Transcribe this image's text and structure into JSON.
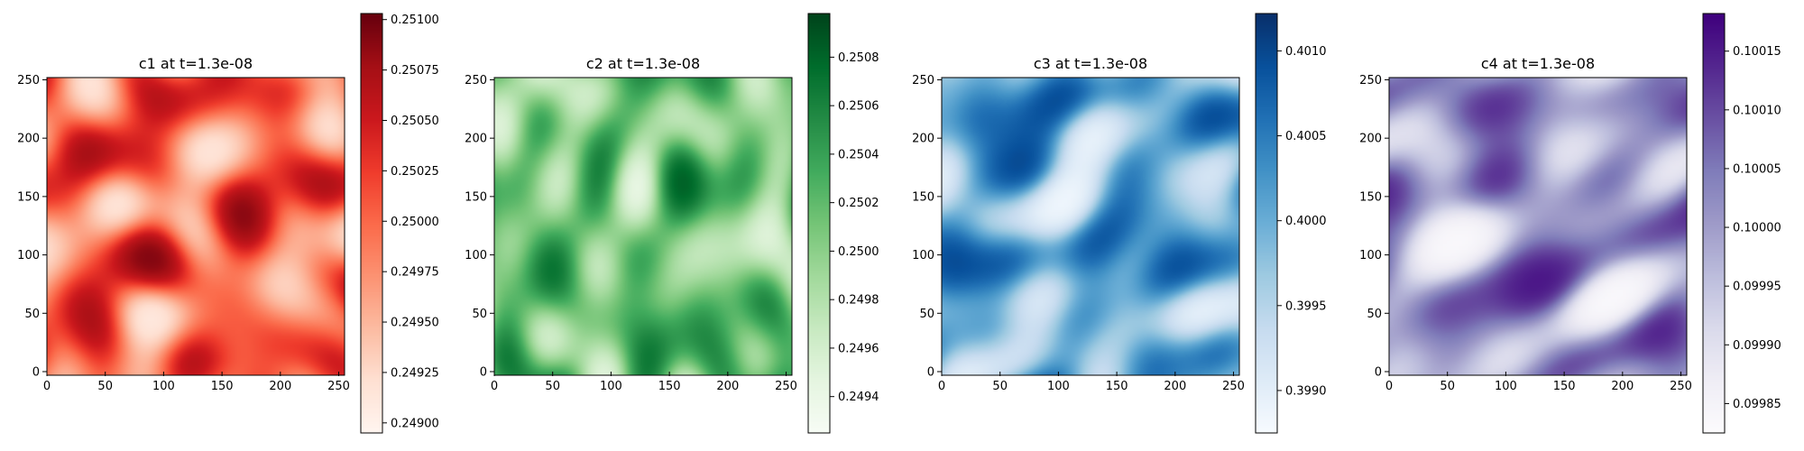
{
  "chart_data": [
    {
      "type": "heatmap",
      "title": "c1 at t=1.3e-08",
      "colormap": "Reds",
      "colors": [
        "#fff5f0",
        "#fee0d2",
        "#fcbba1",
        "#fc9272",
        "#fb6a4a",
        "#ef3b2c",
        "#cb181d",
        "#a50f15",
        "#67000d"
      ],
      "xlim": [
        0,
        255
      ],
      "ylim": [
        0,
        255
      ],
      "xticks": [
        "0",
        "50",
        "100",
        "150",
        "200",
        "250"
      ],
      "yticks": [
        "0",
        "50",
        "100",
        "150",
        "200",
        "250"
      ],
      "colorbar_range": [
        0.24895,
        0.25103
      ],
      "colorbar_ticks": [
        "0.24900",
        "0.24925",
        "0.24950",
        "0.24975",
        "0.25000",
        "0.25025",
        "0.25050",
        "0.25075",
        "0.25100"
      ]
    },
    {
      "type": "heatmap",
      "title": "c2 at t=1.3e-08",
      "colormap": "Greens",
      "colors": [
        "#f7fcf5",
        "#e5f5e0",
        "#c7e9c0",
        "#a1d99b",
        "#74c476",
        "#41ab5d",
        "#238b45",
        "#006d2c",
        "#00441b"
      ],
      "xlim": [
        0,
        255
      ],
      "ylim": [
        0,
        255
      ],
      "xticks": [
        "0",
        "50",
        "100",
        "150",
        "200",
        "250"
      ],
      "yticks": [
        "0",
        "50",
        "100",
        "150",
        "200",
        "250"
      ],
      "colorbar_range": [
        0.24925,
        0.25098
      ],
      "colorbar_ticks": [
        "0.2494",
        "0.2496",
        "0.2498",
        "0.2500",
        "0.2502",
        "0.2504",
        "0.2506",
        "0.2508"
      ]
    },
    {
      "type": "heatmap",
      "title": "c3 at t=1.3e-08",
      "colormap": "Blues",
      "colors": [
        "#f7fbff",
        "#deebf7",
        "#c6dbef",
        "#9ecae1",
        "#6baed6",
        "#4292c6",
        "#2171b5",
        "#08519c",
        "#08306b"
      ],
      "xlim": [
        0,
        255
      ],
      "ylim": [
        0,
        255
      ],
      "xticks": [
        "0",
        "50",
        "100",
        "150",
        "200",
        "250"
      ],
      "yticks": [
        "0",
        "50",
        "100",
        "150",
        "200",
        "250"
      ],
      "colorbar_range": [
        0.39875,
        0.40122
      ],
      "colorbar_ticks": [
        "0.3990",
        "0.3995",
        "0.4000",
        "0.4005",
        "0.4010"
      ]
    },
    {
      "type": "heatmap",
      "title": "c4 at t=1.3e-08",
      "colormap": "Purples",
      "colors": [
        "#fcfbfd",
        "#efedf5",
        "#dadaeb",
        "#bcbddc",
        "#9e9ac8",
        "#807dba",
        "#6a51a3",
        "#54278f",
        "#3f007d"
      ],
      "xlim": [
        0,
        255
      ],
      "ylim": [
        0,
        255
      ],
      "xticks": [
        "0",
        "50",
        "100",
        "150",
        "200",
        "250"
      ],
      "yticks": [
        "0",
        "50",
        "100",
        "150",
        "200",
        "250"
      ],
      "colorbar_range": [
        0.099825,
        0.100182
      ],
      "colorbar_ticks": [
        "0.09985",
        "0.09990",
        "0.09995",
        "0.10000",
        "0.10005",
        "0.10010",
        "0.10015"
      ]
    }
  ]
}
